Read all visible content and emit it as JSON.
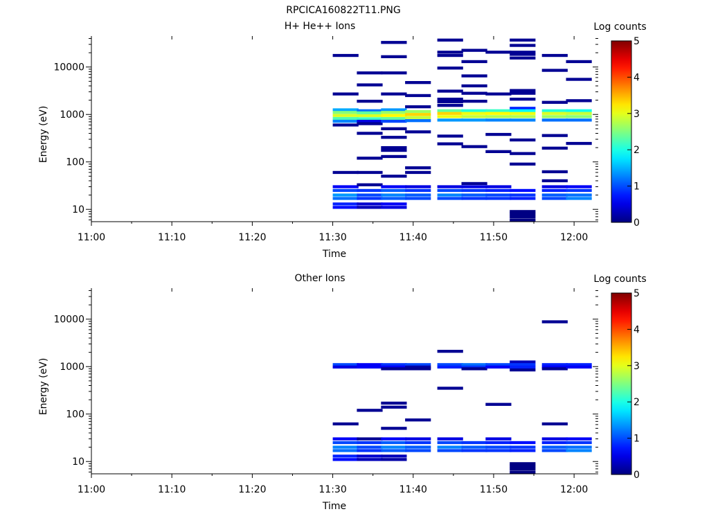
{
  "figure": {
    "title": "RPCICA160822T11.PNG"
  },
  "chart_data": [
    {
      "type": "heatmap",
      "title": "H+ He++ Ions",
      "xlabel": "Time",
      "ylabel": "Energy (eV)",
      "xlim": [
        "11:00",
        "12:03"
      ],
      "ylim": [
        5.5,
        45000
      ],
      "yscale": "log",
      "xticks": [
        "11:00",
        "11:10",
        "11:20",
        "11:30",
        "11:40",
        "11:50",
        "12:00"
      ],
      "yticks": [
        "10",
        "100",
        "1000",
        "10000"
      ],
      "colorbar": {
        "label": "Log counts",
        "range": [
          0,
          5
        ],
        "ticks": [
          "0",
          "1",
          "2",
          "3",
          "4",
          "5"
        ]
      },
      "time_bins": [
        "11:30",
        "11:33",
        "11:36",
        "11:39",
        "11:43",
        "11:46",
        "11:49",
        "11:52",
        "11:56",
        "11:59"
      ],
      "bin_minutes": 3.2,
      "columns": [
        [
          [
            17500,
            0.1
          ],
          [
            2700,
            0.1
          ],
          [
            1250,
            1.5
          ],
          [
            1100,
            2.6
          ],
          [
            950,
            3.0
          ],
          [
            820,
            2.3
          ],
          [
            720,
            1.3
          ],
          [
            600,
            0.1
          ],
          [
            60,
            0.1
          ],
          [
            30,
            0.6
          ],
          [
            25,
            1.0
          ],
          [
            20,
            1.4
          ],
          [
            17,
            1.2
          ],
          [
            13,
            0.8
          ],
          [
            11,
            0.7
          ]
        ],
        [
          [
            7500,
            0.1
          ],
          [
            4200,
            0.1
          ],
          [
            1900,
            0.1
          ],
          [
            1200,
            1.2
          ],
          [
            1080,
            2.4
          ],
          [
            940,
            3.0
          ],
          [
            810,
            2.2
          ],
          [
            720,
            0.5
          ],
          [
            640,
            0.1
          ],
          [
            400,
            0.1
          ],
          [
            120,
            0.1
          ],
          [
            60,
            0.1
          ],
          [
            33,
            0.1
          ],
          [
            25,
            0.9
          ],
          [
            20,
            1.0
          ],
          [
            17,
            0.9
          ],
          [
            13,
            0.4
          ],
          [
            11,
            0.3
          ]
        ],
        [
          [
            33000,
            0.1
          ],
          [
            16500,
            0.1
          ],
          [
            7500,
            0.1
          ],
          [
            2700,
            0.1
          ],
          [
            1250,
            1.4
          ],
          [
            1100,
            2.7
          ],
          [
            950,
            3.2
          ],
          [
            820,
            2.4
          ],
          [
            720,
            1.0
          ],
          [
            500,
            0.1
          ],
          [
            330,
            0.1
          ],
          [
            200,
            0.1
          ],
          [
            175,
            0.1
          ],
          [
            130,
            0.1
          ],
          [
            50,
            0.1
          ],
          [
            30,
            0.6
          ],
          [
            25,
            1.1
          ],
          [
            20,
            1.3
          ],
          [
            17,
            1.1
          ],
          [
            13,
            0.6
          ],
          [
            11,
            0.5
          ]
        ],
        [
          [
            4700,
            0.1
          ],
          [
            2500,
            0.1
          ],
          [
            1450,
            0.1
          ],
          [
            1150,
            2.7
          ],
          [
            1000,
            3.4
          ],
          [
            860,
            2.9
          ],
          [
            740,
            1.2
          ],
          [
            430,
            0.1
          ],
          [
            75,
            0.1
          ],
          [
            60,
            0.1
          ],
          [
            30,
            0.5
          ],
          [
            25,
            0.9
          ],
          [
            20,
            1.1
          ],
          [
            17,
            1.0
          ]
        ],
        [
          [
            37000,
            0.1
          ],
          [
            20500,
            0.1
          ],
          [
            17500,
            0.1
          ],
          [
            9500,
            0.1
          ],
          [
            3100,
            0.1
          ],
          [
            2100,
            0.1
          ],
          [
            1850,
            0.1
          ],
          [
            1550,
            0.1
          ],
          [
            1200,
            2.4
          ],
          [
            1050,
            3.4
          ],
          [
            900,
            3.1
          ],
          [
            760,
            1.4
          ],
          [
            350,
            0.1
          ],
          [
            240,
            0.1
          ],
          [
            30,
            0.5
          ],
          [
            25,
            1.0
          ],
          [
            20,
            1.3
          ],
          [
            17,
            1.0
          ]
        ],
        [
          [
            22500,
            0.1
          ],
          [
            13000,
            0.1
          ],
          [
            6500,
            0.1
          ],
          [
            4000,
            0.1
          ],
          [
            2800,
            0.1
          ],
          [
            1900,
            0.1
          ],
          [
            1200,
            2.1
          ],
          [
            1050,
            3.1
          ],
          [
            900,
            2.9
          ],
          [
            760,
            1.4
          ],
          [
            210,
            0.1
          ],
          [
            35,
            0.1
          ],
          [
            30,
            0.5
          ],
          [
            25,
            0.9
          ],
          [
            20,
            1.1
          ],
          [
            17,
            0.9
          ]
        ],
        [
          [
            20500,
            0.1
          ],
          [
            2700,
            0.1
          ],
          [
            1200,
            2.2
          ],
          [
            1050,
            3.2
          ],
          [
            900,
            2.8
          ],
          [
            760,
            1.3
          ],
          [
            380,
            0.1
          ],
          [
            165,
            0.1
          ],
          [
            30,
            0.5
          ],
          [
            25,
            0.8
          ],
          [
            20,
            1.0
          ],
          [
            17,
            0.9
          ]
        ],
        [
          [
            37000,
            0.1
          ],
          [
            28500,
            0.1
          ],
          [
            20500,
            0.1
          ],
          [
            18500,
            0.1
          ],
          [
            15500,
            0.1
          ],
          [
            3200,
            0.1
          ],
          [
            2800,
            0.1
          ],
          [
            2100,
            0.1
          ],
          [
            1350,
            0.8
          ],
          [
            1200,
            1.9
          ],
          [
            1050,
            3.1
          ],
          [
            900,
            2.8
          ],
          [
            760,
            1.3
          ],
          [
            290,
            0.1
          ],
          [
            150,
            0.1
          ],
          [
            90,
            0.1
          ],
          [
            25,
            0.7
          ],
          [
            20,
            0.9
          ],
          [
            17,
            0.8
          ],
          [
            9,
            0.02
          ],
          [
            8,
            0.02
          ],
          [
            7,
            0.02
          ],
          [
            6,
            0.02
          ]
        ],
        [
          [
            17500,
            0.1
          ],
          [
            8500,
            0.1
          ],
          [
            1800,
            0.1
          ],
          [
            1200,
            2.1
          ],
          [
            1050,
            3.0
          ],
          [
            900,
            2.7
          ],
          [
            760,
            1.2
          ],
          [
            360,
            0.1
          ],
          [
            195,
            0.1
          ],
          [
            62,
            0.1
          ],
          [
            40,
            0.1
          ],
          [
            30,
            0.5
          ],
          [
            25,
            0.8
          ],
          [
            20,
            1.1
          ],
          [
            17,
            1.0
          ]
        ],
        [
          [
            13000,
            0.1
          ],
          [
            5500,
            0.1
          ],
          [
            1950,
            0.1
          ],
          [
            1200,
            2.0
          ],
          [
            1050,
            2.9
          ],
          [
            900,
            2.6
          ],
          [
            760,
            1.2
          ],
          [
            245,
            0.1
          ],
          [
            30,
            0.6
          ],
          [
            25,
            0.9
          ],
          [
            20,
            1.2
          ],
          [
            17,
            1.3
          ]
        ]
      ]
    },
    {
      "type": "heatmap",
      "title": "Other Ions",
      "xlabel": "Time",
      "ylabel": "Energy (eV)",
      "xlim": [
        "11:00",
        "12:03"
      ],
      "ylim": [
        5.5,
        45000
      ],
      "yscale": "log",
      "xticks": [
        "11:00",
        "11:10",
        "11:20",
        "11:30",
        "11:40",
        "11:50",
        "12:00"
      ],
      "yticks": [
        "10",
        "100",
        "1000",
        "10000"
      ],
      "colorbar": {
        "label": "Log counts",
        "range": [
          0,
          5
        ],
        "ticks": [
          "0",
          "1",
          "2",
          "3",
          "4",
          "5"
        ]
      },
      "time_bins": [
        "11:30",
        "11:33",
        "11:36",
        "11:39",
        "11:43",
        "11:46",
        "11:49",
        "11:52",
        "11:56",
        "11:59"
      ],
      "bin_minutes": 3.2,
      "columns": [
        [
          [
            1100,
            1.0
          ],
          [
            980,
            0.5
          ],
          [
            62,
            0.1
          ],
          [
            30,
            0.6
          ],
          [
            25,
            1.0
          ],
          [
            20,
            1.3
          ],
          [
            17,
            1.2
          ],
          [
            13,
            0.8
          ],
          [
            11,
            0.7
          ]
        ],
        [
          [
            1100,
            0.6
          ],
          [
            980,
            0.6
          ],
          [
            120,
            0.1
          ],
          [
            30,
            0.1
          ],
          [
            25,
            0.9
          ],
          [
            20,
            1.0
          ],
          [
            17,
            0.9
          ],
          [
            13,
            0.4
          ],
          [
            11,
            0.3
          ]
        ],
        [
          [
            1100,
            0.9
          ],
          [
            980,
            0.6
          ],
          [
            900,
            0.1
          ],
          [
            170,
            0.1
          ],
          [
            140,
            0.1
          ],
          [
            50,
            0.1
          ],
          [
            30,
            0.6
          ],
          [
            25,
            1.1
          ],
          [
            20,
            1.3
          ],
          [
            17,
            1.1
          ],
          [
            13,
            0.3
          ],
          [
            11,
            0.2
          ]
        ],
        [
          [
            1100,
            1.0
          ],
          [
            980,
            0.2
          ],
          [
            900,
            0.1
          ],
          [
            75,
            0.1
          ],
          [
            30,
            0.5
          ],
          [
            25,
            0.9
          ],
          [
            20,
            1.1
          ],
          [
            17,
            1.0
          ]
        ],
        [
          [
            2100,
            0.1
          ],
          [
            1100,
            1.0
          ],
          [
            980,
            0.8
          ],
          [
            350,
            0.1
          ],
          [
            30,
            0.5
          ],
          [
            25,
            1.0
          ],
          [
            20,
            1.3
          ],
          [
            17,
            1.0
          ]
        ],
        [
          [
            1100,
            1.2
          ],
          [
            980,
            0.9
          ],
          [
            900,
            0.1
          ],
          [
            25,
            0.9
          ],
          [
            20,
            1.1
          ],
          [
            17,
            0.9
          ]
        ],
        [
          [
            1100,
            1.0
          ],
          [
            980,
            0.6
          ],
          [
            160,
            0.1
          ],
          [
            30,
            0.5
          ],
          [
            25,
            0.8
          ],
          [
            20,
            1.0
          ],
          [
            17,
            0.9
          ]
        ],
        [
          [
            1250,
            0.3
          ],
          [
            1100,
            0.9
          ],
          [
            980,
            0.8
          ],
          [
            850,
            0.1
          ],
          [
            25,
            0.7
          ],
          [
            20,
            0.9
          ],
          [
            17,
            0.8
          ],
          [
            9,
            0.02
          ],
          [
            8,
            0.02
          ],
          [
            7,
            0.02
          ],
          [
            6,
            0.02
          ]
        ],
        [
          [
            8800,
            0.1
          ],
          [
            1100,
            0.8
          ],
          [
            980,
            0.6
          ],
          [
            900,
            0.1
          ],
          [
            62,
            0.1
          ],
          [
            30,
            0.5
          ],
          [
            25,
            0.8
          ],
          [
            20,
            1.1
          ],
          [
            17,
            1.0
          ]
        ],
        [
          [
            1100,
            0.8
          ],
          [
            980,
            0.6
          ],
          [
            30,
            0.6
          ],
          [
            25,
            0.9
          ],
          [
            20,
            1.2
          ],
          [
            17,
            1.3
          ]
        ]
      ]
    }
  ]
}
